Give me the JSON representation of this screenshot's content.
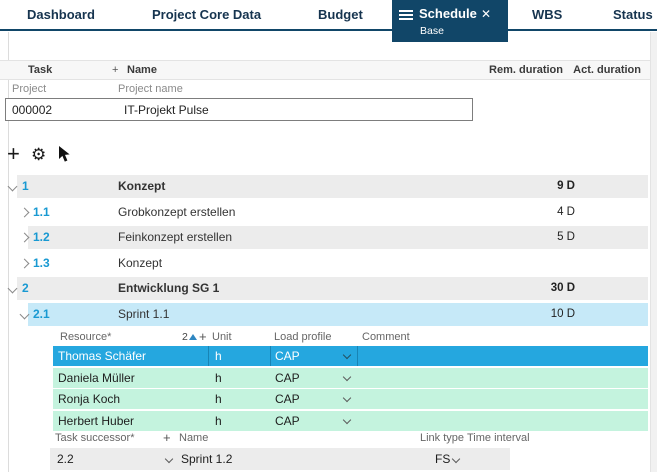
{
  "colors": {
    "accent_navy": "#114668",
    "tab_text": "#16344f",
    "task_number_blue": "#1899d2",
    "row_stripe": "#ececec",
    "selected_task_row": "#c6e9f8",
    "selected_resource_row": "#25a7df",
    "resource_row_green": "#c4f3de",
    "sort_triangle_blue": "#2e86c1"
  },
  "tabs": {
    "items": [
      {
        "label": "Dashboard",
        "active": false
      },
      {
        "label": "Project Core Data",
        "active": false
      },
      {
        "label": "Budget",
        "active": false
      },
      {
        "label": "Schedule",
        "sublabel": "Base",
        "active": true
      },
      {
        "label": "WBS",
        "active": false
      },
      {
        "label": "Status",
        "active": false
      }
    ],
    "active_close_icon": "✕"
  },
  "table_header": {
    "task": "Task",
    "add": "+",
    "name": "Name",
    "rem_duration": "Rem. duration",
    "act_duration": "Act. duration"
  },
  "project": {
    "id_label": "Project",
    "name_label": "Project name",
    "id_value": "000002",
    "name_value": "IT-Projekt Pulse"
  },
  "toolbar": {
    "icons": [
      "add-icon",
      "settings-gear-icon",
      "cursor-pointer-icon"
    ],
    "gear_glyph": "⚙",
    "plus_glyph": "+"
  },
  "tasks": [
    {
      "number": "1",
      "name": "Konzept",
      "rem_duration": "9 D",
      "level": 1,
      "expanded": true,
      "summary": true,
      "stripe": true,
      "selected": false
    },
    {
      "number": "1.1",
      "name": "Grobkonzept erstellen",
      "rem_duration": "4 D",
      "level": 2,
      "expanded": false,
      "summary": false,
      "stripe": false,
      "selected": false
    },
    {
      "number": "1.2",
      "name": "Feinkonzept erstellen",
      "rem_duration": "5 D",
      "level": 2,
      "expanded": false,
      "summary": false,
      "stripe": true,
      "selected": false
    },
    {
      "number": "1.3",
      "name": "Konzept",
      "rem_duration": "",
      "level": 2,
      "expanded": false,
      "summary": false,
      "stripe": false,
      "selected": false
    },
    {
      "number": "2",
      "name": "Entwicklung SG 1",
      "rem_duration": "30 D",
      "level": 1,
      "expanded": true,
      "summary": true,
      "stripe": true,
      "selected": false
    },
    {
      "number": "2.1",
      "name": "Sprint 1.1",
      "rem_duration": "10 D",
      "level": 2,
      "expanded": true,
      "summary": false,
      "stripe": false,
      "selected": true
    }
  ],
  "resource_table": {
    "headers": {
      "resource": "Resource*",
      "sort_badge": "2",
      "add": "+",
      "unit": "Unit",
      "load_profile": "Load profile",
      "comment": "Comment"
    },
    "rows": [
      {
        "name": "Thomas Schäfer",
        "unit": "h",
        "load_profile": "CAP",
        "comment": "",
        "selected": true
      },
      {
        "name": "Daniela Müller",
        "unit": "h",
        "load_profile": "CAP",
        "comment": "",
        "selected": false
      },
      {
        "name": "Ronja Koch",
        "unit": "h",
        "load_profile": "CAP",
        "comment": "",
        "selected": false
      },
      {
        "name": "Herbert Huber",
        "unit": "h",
        "load_profile": "CAP",
        "comment": "",
        "selected": false
      }
    ]
  },
  "successor_table": {
    "headers": {
      "task": "Task successor*",
      "add": "+",
      "name": "Name",
      "link_type": "Link type",
      "time_interval": "Time interval"
    },
    "rows": [
      {
        "task": "2.2",
        "name": "Sprint 1.2",
        "link_type": "FS",
        "time_interval": ""
      }
    ]
  }
}
